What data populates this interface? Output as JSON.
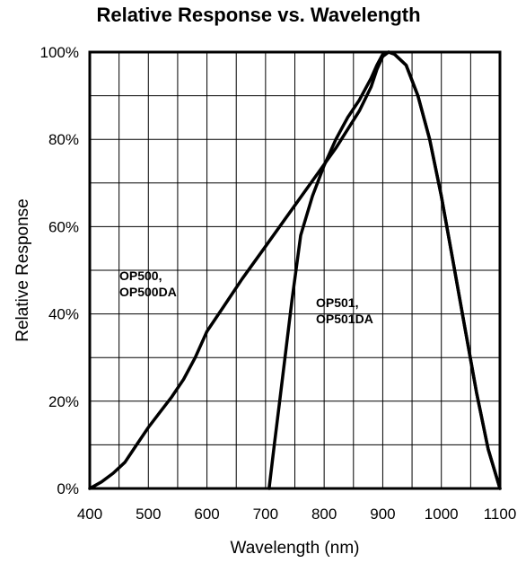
{
  "chart_data": {
    "type": "line",
    "title": "Relative Response vs. Wavelength",
    "xlabel": "Wavelength (nm)",
    "ylabel": "Relative Response",
    "xlim": [
      400,
      1100
    ],
    "ylim": [
      0,
      100
    ],
    "x_ticks": [
      400,
      500,
      600,
      700,
      800,
      900,
      1000,
      1100
    ],
    "x_tick_labels": [
      "400",
      "500",
      "600",
      "700",
      "800",
      "900",
      "1000",
      "1100"
    ],
    "y_ticks": [
      0,
      20,
      40,
      60,
      80,
      100
    ],
    "y_tick_labels": [
      "0%",
      "20%",
      "40%",
      "60%",
      "80%",
      "100%"
    ],
    "grid": true,
    "series": [
      {
        "name_lines": [
          "OP500,",
          "OP500DA"
        ],
        "x": [
          400,
          420,
          440,
          460,
          480,
          500,
          520,
          540,
          560,
          580,
          600,
          630,
          660,
          700,
          740,
          780,
          820,
          860,
          880,
          890,
          900,
          910,
          920,
          940,
          960,
          980,
          1000,
          1020,
          1040,
          1060,
          1080,
          1100
        ],
        "y": [
          0,
          1.5,
          3.5,
          6,
          10,
          14,
          17.5,
          21,
          25,
          30,
          36,
          42,
          48,
          55.5,
          63,
          70.5,
          78,
          86.5,
          92,
          96,
          99,
          100,
          99.5,
          97,
          90,
          80,
          67,
          52,
          37,
          22,
          9,
          0
        ]
      },
      {
        "name_lines": [
          "OP501,",
          "OP501DA"
        ],
        "x": [
          706,
          715,
          725,
          735,
          745,
          760,
          780,
          800,
          820,
          840,
          860,
          880,
          890,
          900,
          910,
          920,
          940,
          960,
          980,
          1000,
          1020,
          1040,
          1060,
          1080,
          1100
        ],
        "y": [
          0,
          10,
          21,
          32,
          43,
          58,
          67,
          74,
          80,
          85,
          89,
          94,
          97,
          99.5,
          100,
          99.5,
          97,
          90,
          80,
          67,
          52,
          37,
          22,
          9,
          0
        ]
      }
    ]
  }
}
